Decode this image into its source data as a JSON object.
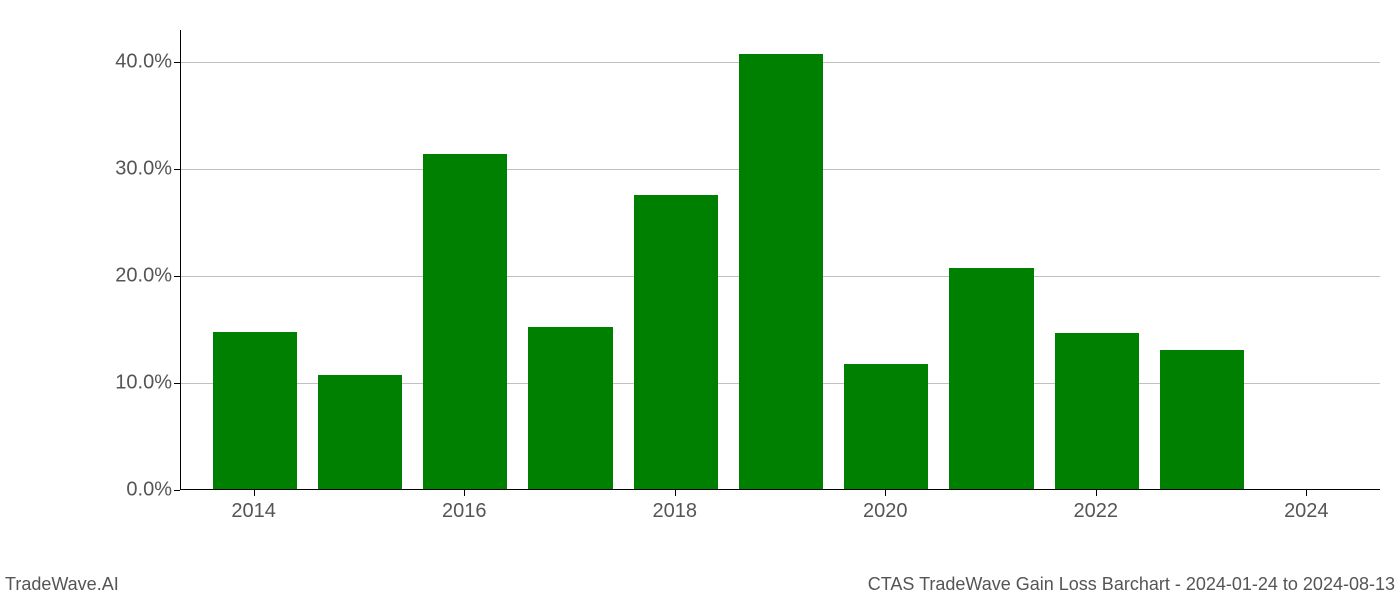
{
  "chart": {
    "type": "bar",
    "years": [
      2014,
      2015,
      2016,
      2017,
      2018,
      2019,
      2020,
      2021,
      2022,
      2023,
      2024
    ],
    "values": [
      14.7,
      10.7,
      31.3,
      15.1,
      27.5,
      40.7,
      11.7,
      20.7,
      14.6,
      13.0,
      0.0
    ],
    "bar_color": "#008000",
    "background_color": "#ffffff",
    "grid_color": "#c0c0c0",
    "axis_color": "#000000",
    "tick_label_color": "#555555",
    "tick_fontsize": 20,
    "ylim": [
      0,
      43
    ],
    "yticks": [
      0.0,
      10.0,
      20.0,
      30.0,
      40.0
    ],
    "ytick_labels": [
      "0.0%",
      "10.0%",
      "20.0%",
      "30.0%",
      "40.0%"
    ],
    "xtick_years": [
      2014,
      2016,
      2018,
      2020,
      2022,
      2024
    ],
    "xtick_labels": [
      "2014",
      "2016",
      "2018",
      "2020",
      "2022",
      "2024"
    ],
    "x_range": [
      2013.3,
      2024.7
    ],
    "bar_width": 0.8
  },
  "footer": {
    "left": "TradeWave.AI",
    "right": "CTAS TradeWave Gain Loss Barchart - 2024-01-24 to 2024-08-13"
  }
}
